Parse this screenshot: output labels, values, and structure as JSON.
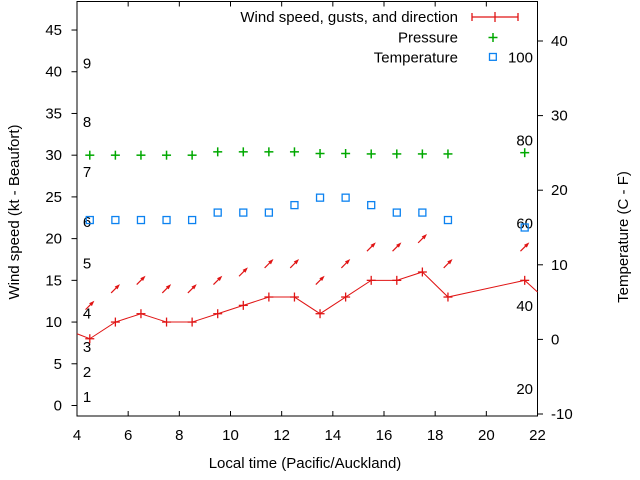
{
  "chart_data": {
    "type": "line",
    "xlabel": "Local time (Pacific/Auckland)",
    "x_range": [
      4,
      22
    ],
    "x_ticks": [
      4,
      6,
      8,
      10,
      12,
      14,
      16,
      18,
      20,
      22
    ],
    "left_axis": {
      "label": "Wind speed (kt - Beaufort)",
      "unit": "kt",
      "range": [
        0,
        48
      ],
      "ticks": [
        0,
        5,
        10,
        15,
        20,
        25,
        30,
        35,
        40,
        45
      ]
    },
    "beaufort_scale": [
      {
        "label": "1",
        "kt": 1
      },
      {
        "label": "2",
        "kt": 4
      },
      {
        "label": "3",
        "kt": 7
      },
      {
        "label": "4",
        "kt": 11
      },
      {
        "label": "5",
        "kt": 17
      },
      {
        "label": "6",
        "kt": 22
      },
      {
        "label": "7",
        "kt": 28
      },
      {
        "label": "8",
        "kt": 34
      },
      {
        "label": "9",
        "kt": 41
      }
    ],
    "right_axis": {
      "label": "Temperature (C - F)",
      "unit": "C",
      "range": [
        -10,
        45
      ],
      "ticks": [
        -10,
        0,
        10,
        20,
        30,
        40
      ]
    },
    "fahrenheit_scale": [
      {
        "label": "20",
        "f": 20
      },
      {
        "label": "40",
        "f": 40
      },
      {
        "label": "60",
        "f": 60
      },
      {
        "label": "80",
        "f": 80
      },
      {
        "label": "100",
        "f": 100
      }
    ],
    "legend": [
      {
        "label": "Wind speed, gusts, and direction",
        "marker": "errorbar-red"
      },
      {
        "label": "Pressure",
        "marker": "plus-green"
      },
      {
        "label": "Temperature",
        "marker": "square-blue"
      }
    ],
    "series": {
      "times": [
        4.5,
        5.5,
        6.5,
        7.5,
        8.5,
        9.5,
        10.5,
        11.5,
        12.5,
        13.5,
        14.5,
        15.5,
        16.5,
        17.5,
        18.5,
        21.5
      ],
      "wind_speed_kt": [
        8,
        10,
        11,
        10,
        10,
        11,
        12,
        13,
        13,
        11,
        13,
        15,
        15,
        16,
        13,
        15
      ],
      "wind_gust_kt": [
        12,
        14,
        15,
        14,
        14,
        15,
        16,
        17,
        17,
        15,
        17,
        19,
        19,
        20,
        17,
        19
      ],
      "wind_direction_arrow_deg": 45,
      "pressure_inHg": [
        30.0,
        30.0,
        30.0,
        30.0,
        30.0,
        30.4,
        30.4,
        30.4,
        30.4,
        30.2,
        30.2,
        30.15,
        30.15,
        30.15,
        30.15,
        30.3
      ],
      "temperature_c": [
        16,
        16,
        16,
        16,
        16,
        17,
        17,
        17,
        18,
        19,
        19,
        18,
        17,
        17,
        16,
        15
      ]
    },
    "wind_line_edge_values": {
      "x4": 8.6,
      "x22": 13.6
    },
    "colors": {
      "wind": "#e01414",
      "pressure": "#00a800",
      "temperature": "#0c82f0",
      "axis": "#000000",
      "background": "#ffffff"
    }
  }
}
